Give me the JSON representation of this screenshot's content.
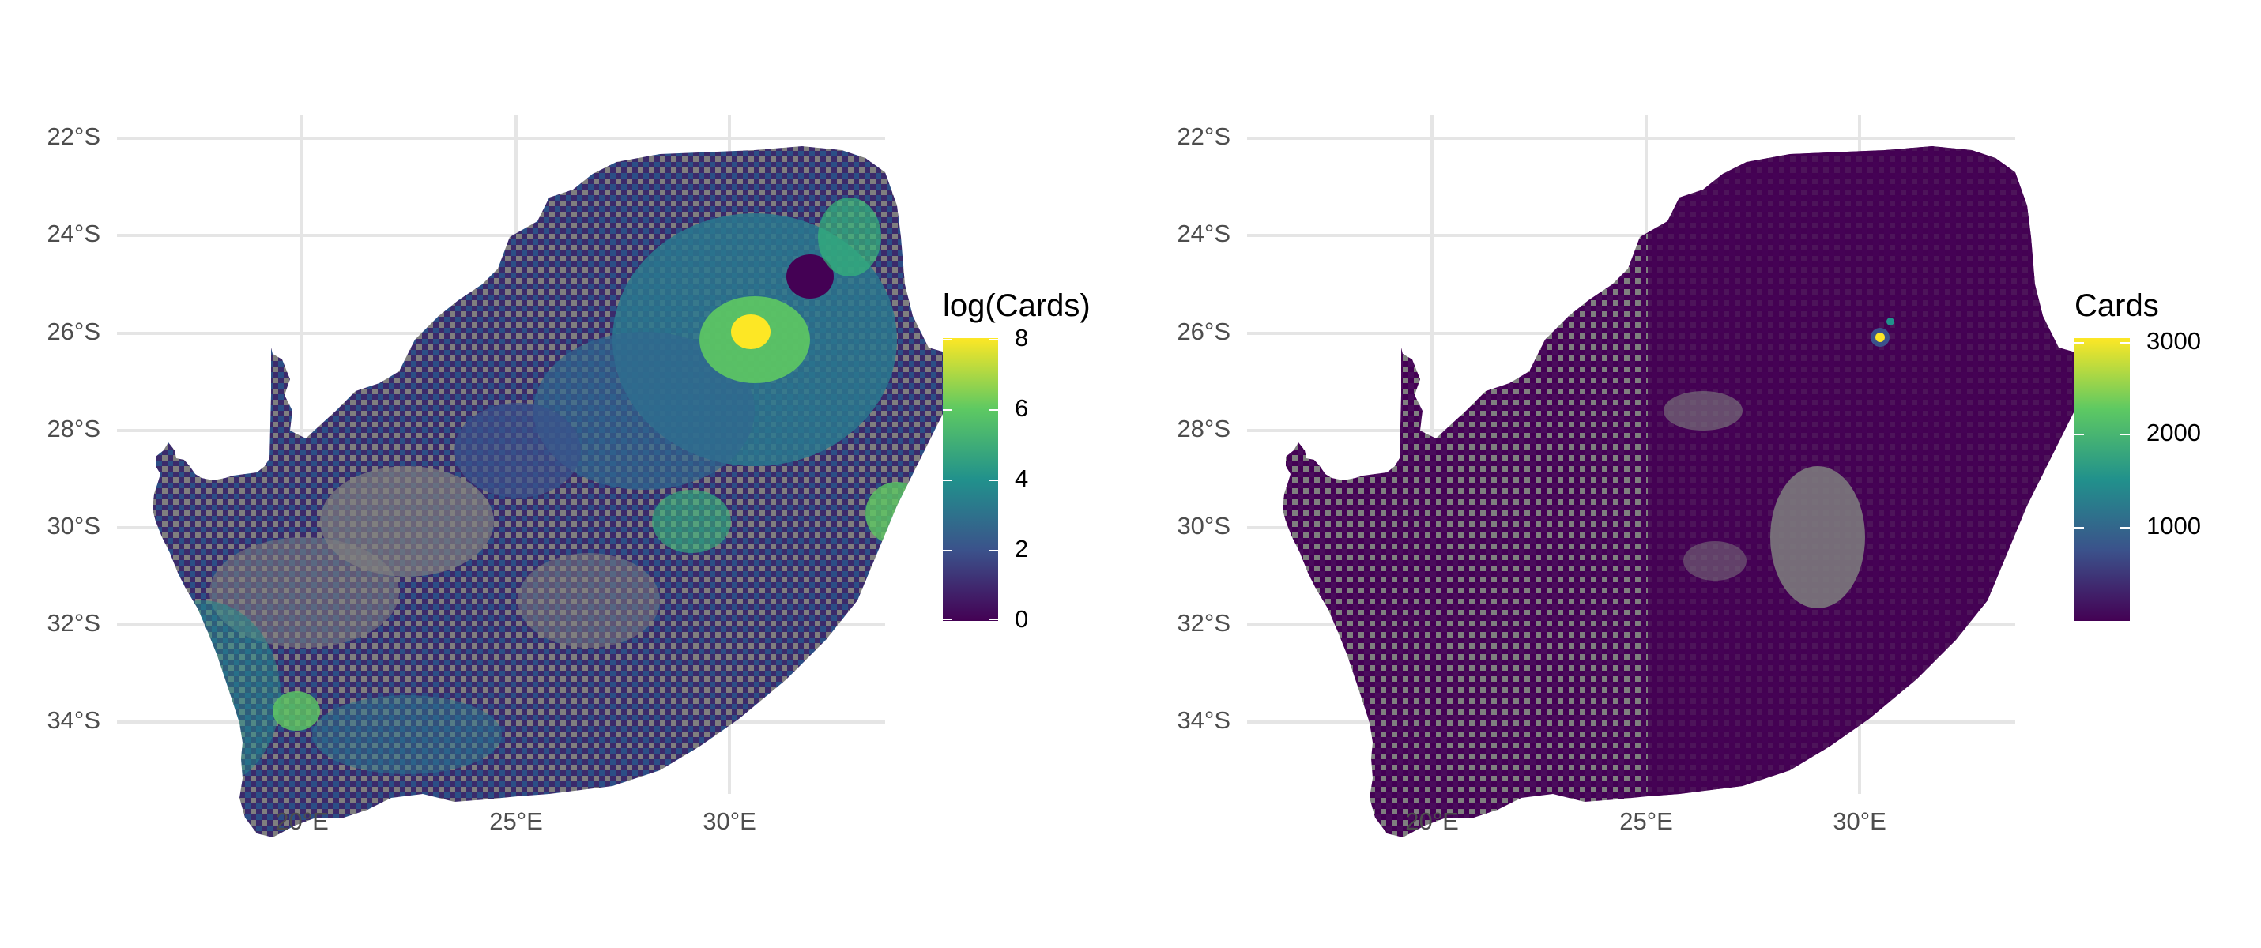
{
  "panels": [
    {
      "x_ticks": [
        "20°E",
        "25°E",
        "30°E"
      ],
      "y_ticks": [
        "22°S",
        "24°S",
        "26°S",
        "28°S",
        "30°S",
        "32°S",
        "34°S"
      ],
      "legend": {
        "title": "log(Cards)",
        "labels": [
          "8",
          "6",
          "4",
          "2",
          "0"
        ],
        "range": [
          0,
          8
        ]
      }
    },
    {
      "x_ticks": [
        "20°E",
        "25°E",
        "30°E"
      ],
      "y_ticks": [
        "22°S",
        "24°S",
        "26°S",
        "28°S",
        "30°S",
        "32°S",
        "34°S"
      ],
      "legend": {
        "title": "Cards",
        "labels": [
          "3000",
          "2000",
          "1000"
        ],
        "range": [
          0,
          3100
        ]
      }
    }
  ],
  "colors": {
    "missing": "#7f7f7f",
    "low": "#440154",
    "mid": "#21918c",
    "high": "#fde725",
    "grid": "#e5e5e5"
  }
}
